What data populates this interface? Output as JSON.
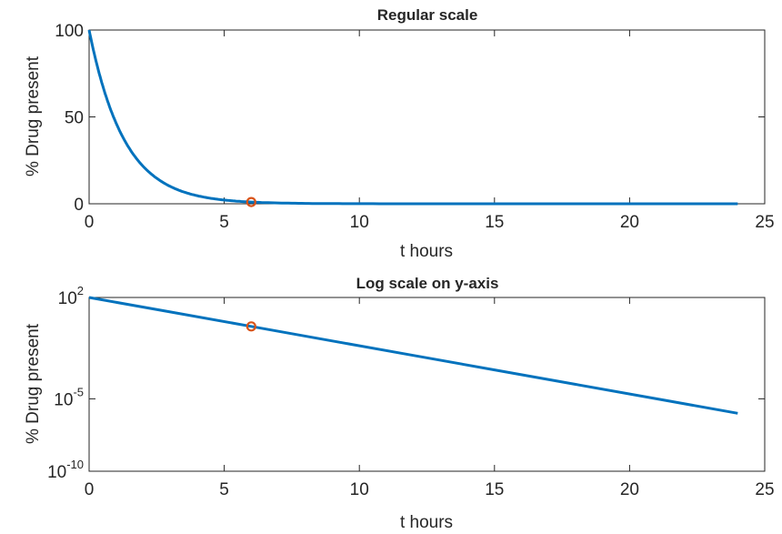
{
  "figure": {
    "background": "#ffffff",
    "axis_color": "#262626",
    "line_color": "#0072bd",
    "marker_color": "#d95319"
  },
  "chart_data": [
    {
      "type": "line",
      "title": "Regular scale",
      "xlabel": "t hours",
      "ylabel": "% Drug present",
      "xlim": [
        0,
        25
      ],
      "ylim": [
        0,
        100
      ],
      "yscale": "linear",
      "xticks": [
        0,
        5,
        10,
        15,
        20,
        25
      ],
      "yticks": [
        0,
        50,
        100
      ],
      "xtick_labels": [
        "0",
        "5",
        "10",
        "15",
        "20",
        "25"
      ],
      "ytick_labels": [
        {
          "base": "0",
          "exp": ""
        },
        {
          "base": "50",
          "exp": ""
        },
        {
          "base": "100",
          "exp": ""
        }
      ],
      "grid": false,
      "box": true,
      "series": [
        {
          "kind": "line",
          "x": [
            0,
            0.25,
            0.5,
            0.75,
            1,
            1.5,
            2,
            2.5,
            3,
            3.5,
            4,
            4.5,
            5,
            5.5,
            6,
            7,
            8,
            9,
            10,
            12,
            14,
            16,
            18,
            20,
            22,
            24
          ],
          "y": [
            100,
            82.5,
            68.1,
            56.2,
            46.4,
            31.6,
            21.5,
            14.7,
            10.0,
            6.81,
            4.64,
            3.16,
            2.15,
            1.47,
            1.0,
            0.46,
            0.22,
            0.1,
            0.046,
            0.01,
            0.0022,
            0.00046,
            0.0001,
            2.2e-05,
            4.6e-06,
            1e-06
          ]
        },
        {
          "kind": "marker",
          "marker": "circle",
          "x": [
            6
          ],
          "y": [
            1.0
          ]
        }
      ]
    },
    {
      "type": "line",
      "title": "Log scale on y-axis",
      "xlabel": "t hours",
      "ylabel": "% Drug present",
      "xlim": [
        0,
        25
      ],
      "ylim": [
        1e-10,
        100
      ],
      "yscale": "log",
      "xticks": [
        0,
        5,
        10,
        15,
        20,
        25
      ],
      "yticks": [
        1e-10,
        1e-05,
        100
      ],
      "xtick_labels": [
        "0",
        "5",
        "10",
        "15",
        "20",
        "25"
      ],
      "ytick_labels": [
        {
          "base": "10",
          "exp": "-10"
        },
        {
          "base": "10",
          "exp": "-5"
        },
        {
          "base": "10",
          "exp": "2"
        }
      ],
      "grid": false,
      "box": true,
      "series": [
        {
          "kind": "line",
          "x": [
            0,
            3,
            6,
            9,
            12,
            15,
            18,
            21,
            24
          ],
          "y": [
            100,
            10,
            1,
            0.1,
            0.01,
            0.001,
            0.0001,
            1e-05,
            1e-06
          ]
        },
        {
          "kind": "marker",
          "marker": "circle",
          "x": [
            6
          ],
          "y": [
            1.0
          ]
        }
      ]
    }
  ]
}
